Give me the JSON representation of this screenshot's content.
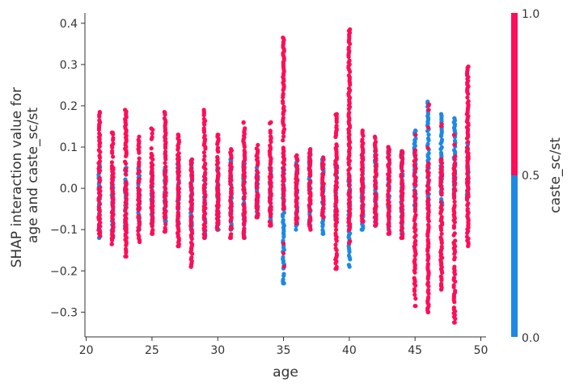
{
  "chart_data": {
    "type": "scatter",
    "title": "",
    "xlabel": "age",
    "ylabel_lines": [
      "SHAP interaction value for",
      "age and caste_sc/st"
    ],
    "xlim": [
      19.9,
      50.4
    ],
    "ylim": [
      -0.36,
      0.425
    ],
    "xticks": [
      20,
      25,
      30,
      35,
      40,
      45,
      50
    ],
    "yticks": [
      -0.3,
      -0.2,
      -0.1,
      0.0,
      0.1,
      0.2,
      0.3,
      0.4
    ],
    "ytick_labels": [
      "−0.3",
      "−0.2",
      "−0.1",
      "0.0",
      "0.1",
      "0.2",
      "0.3",
      "0.4"
    ],
    "grid": false,
    "colorbar": {
      "label": "caste_sc/st",
      "min": 0.0,
      "max": 1.0,
      "tick_labels": [
        "0.0",
        "0.5",
        "1.0"
      ],
      "low_color": "#1e88e5",
      "high_color": "#ff0d57"
    },
    "series": [
      {
        "name": "caste_sc/st = 1",
        "color": "#ff0d57",
        "columns": [
          {
            "x": 21,
            "min": -0.11,
            "max": 0.185
          },
          {
            "x": 22,
            "min": -0.135,
            "max": 0.135
          },
          {
            "x": 23,
            "min": -0.165,
            "max": 0.19
          },
          {
            "x": 24,
            "min": -0.13,
            "max": 0.125
          },
          {
            "x": 25,
            "min": -0.11,
            "max": 0.145
          },
          {
            "x": 26,
            "min": -0.105,
            "max": 0.185
          },
          {
            "x": 27,
            "min": -0.14,
            "max": 0.13
          },
          {
            "x": 28,
            "min": -0.19,
            "max": 0.07
          },
          {
            "x": 29,
            "min": -0.12,
            "max": 0.19
          },
          {
            "x": 30,
            "min": -0.1,
            "max": 0.13
          },
          {
            "x": 31,
            "min": -0.12,
            "max": 0.095
          },
          {
            "x": 32,
            "min": -0.12,
            "max": 0.16
          },
          {
            "x": 33,
            "min": -0.07,
            "max": 0.105
          },
          {
            "x": 34,
            "min": -0.09,
            "max": 0.16
          },
          {
            "x": 35,
            "min": -0.05,
            "max": 0.365
          },
          {
            "x": 36,
            "min": -0.085,
            "max": 0.08
          },
          {
            "x": 37,
            "min": -0.1,
            "max": 0.095
          },
          {
            "x": 38,
            "min": -0.07,
            "max": 0.075
          },
          {
            "x": 39,
            "min": -0.195,
            "max": 0.18
          },
          {
            "x": 40,
            "min": -0.1,
            "max": 0.385
          },
          {
            "x": 41,
            "min": -0.08,
            "max": 0.14
          },
          {
            "x": 42,
            "min": -0.09,
            "max": 0.125
          },
          {
            "x": 43,
            "min": -0.11,
            "max": 0.1
          },
          {
            "x": 44,
            "min": -0.12,
            "max": 0.09
          },
          {
            "x": 45,
            "min": -0.285,
            "max": 0.08
          },
          {
            "x": 46,
            "min": -0.3,
            "max": 0.06
          },
          {
            "x": 47,
            "min": -0.245,
            "max": 0.07
          },
          {
            "x": 48,
            "min": -0.325,
            "max": 0.06
          },
          {
            "x": 49,
            "min": -0.14,
            "max": 0.295
          }
        ]
      },
      {
        "name": "caste_sc/st = 0",
        "color": "#1e88e5",
        "columns": [
          {
            "x": 21,
            "min": -0.12,
            "max": 0.06
          },
          {
            "x": 22,
            "min": -0.12,
            "max": 0.05
          },
          {
            "x": 23,
            "min": -0.1,
            "max": 0.05
          },
          {
            "x": 24,
            "min": -0.1,
            "max": 0.05
          },
          {
            "x": 25,
            "min": -0.09,
            "max": 0.04
          },
          {
            "x": 26,
            "min": -0.08,
            "max": 0.05
          },
          {
            "x": 27,
            "min": -0.09,
            "max": 0.07
          },
          {
            "x": 28,
            "min": -0.1,
            "max": 0.07
          },
          {
            "x": 29,
            "min": -0.12,
            "max": 0.02
          },
          {
            "x": 30,
            "min": -0.1,
            "max": 0.05
          },
          {
            "x": 31,
            "min": -0.1,
            "max": 0.07
          },
          {
            "x": 32,
            "min": -0.12,
            "max": 0.06
          },
          {
            "x": 33,
            "min": -0.07,
            "max": 0.05
          },
          {
            "x": 34,
            "min": -0.08,
            "max": 0.05
          },
          {
            "x": 35,
            "min": -0.23,
            "max": 0.05
          },
          {
            "x": 36,
            "min": -0.1,
            "max": 0.07
          },
          {
            "x": 37,
            "min": -0.09,
            "max": 0.085
          },
          {
            "x": 38,
            "min": -0.11,
            "max": 0.07
          },
          {
            "x": 39,
            "min": -0.08,
            "max": 0.06
          },
          {
            "x": 40,
            "min": -0.19,
            "max": 0.03
          },
          {
            "x": 41,
            "min": -0.1,
            "max": 0.08
          },
          {
            "x": 42,
            "min": -0.09,
            "max": 0.09
          },
          {
            "x": 43,
            "min": -0.1,
            "max": 0.1
          },
          {
            "x": 44,
            "min": -0.11,
            "max": 0.09
          },
          {
            "x": 45,
            "min": -0.05,
            "max": 0.14
          },
          {
            "x": 46,
            "min": -0.05,
            "max": 0.21
          },
          {
            "x": 47,
            "min": -0.04,
            "max": 0.18
          },
          {
            "x": 48,
            "min": -0.02,
            "max": 0.17
          },
          {
            "x": 49,
            "min": -0.02,
            "max": 0.11
          }
        ]
      }
    ]
  }
}
